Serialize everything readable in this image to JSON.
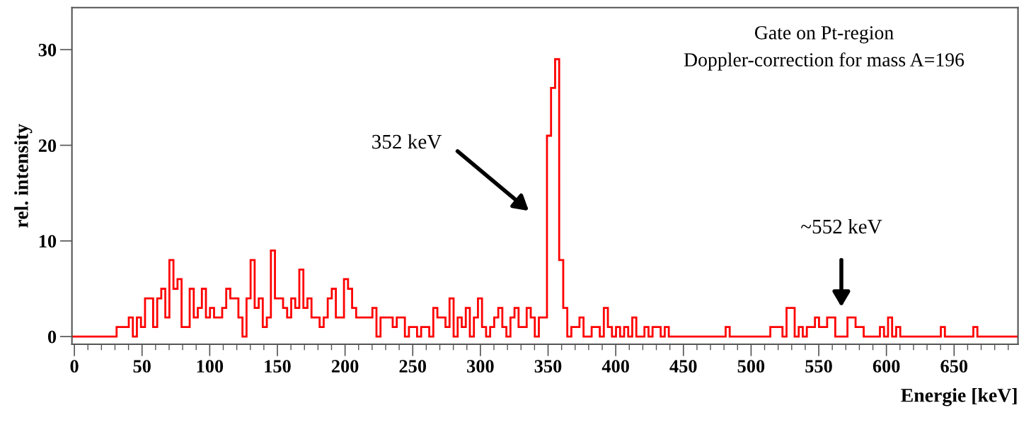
{
  "chart_data": {
    "type": "histogram",
    "xlabel": "Energie [keV]",
    "ylabel": "rel. intensity",
    "annotations": [
      "Gate on Pt-region",
      "Doppler-correction for mass A=196",
      "352 keV",
      "~552 keV"
    ],
    "color": "#ff0000",
    "bins": [
      -1.8,
      31.2,
      40.2,
      43.2,
      46.2,
      49.2,
      52.2,
      58.2,
      61.2,
      64.2,
      67.2,
      70.2,
      73.2,
      76.2,
      79.2,
      85.2,
      88.2,
      91.2,
      94.2,
      97.2,
      100.2,
      103.2,
      109.2,
      112.2,
      115.2,
      121.2,
      124.2,
      127.2,
      130.2,
      133.2,
      136.2,
      139.2,
      142.2,
      145.2,
      148.2,
      154.2,
      157.2,
      160.2,
      163.2,
      166.2,
      169.2,
      172.2,
      175.2,
      181.2,
      184.2,
      187.2,
      190.2,
      193.2,
      199.2,
      202.2,
      205.2,
      208.2,
      220.2,
      223.2,
      226.2,
      235.2,
      238.2,
      244.2,
      247.2,
      253.2,
      256.2,
      262.2,
      265.2,
      268.2,
      274.2,
      277.2,
      280.2,
      283.2,
      286.2,
      289.2,
      292.2,
      295.2,
      298.2,
      301.2,
      304.2,
      307.2,
      310.2,
      313.2,
      316.2,
      319.2,
      322.2,
      325.2,
      328.2,
      334.2,
      337.2,
      340.2,
      343.2,
      349.2,
      352.2,
      355.2,
      358.2,
      361.2,
      364.2,
      367.2,
      373.2,
      376.2,
      382.2,
      388.2,
      391.2,
      394.2,
      397.2,
      400.2,
      403.2,
      406.2,
      409.2,
      412.2,
      415.2,
      421.2,
      424.2,
      427.2,
      433.2,
      436.2,
      439.2,
      481.2,
      484.2,
      514.2,
      523.2,
      526.2,
      532.2,
      535.2,
      538.2,
      541.2,
      547.2,
      550.2,
      556.2,
      562.2,
      571.2,
      577.2,
      583.2,
      595.2,
      598.2,
      601.2,
      604.2,
      607.2,
      610.2,
      640.2,
      643.2,
      664.2,
      667.2,
      697.2
    ],
    "values": [
      0,
      1,
      2,
      0,
      2,
      1,
      4,
      1,
      4,
      5,
      2,
      8,
      5,
      6,
      1,
      5,
      2,
      3,
      5,
      2,
      3,
      2,
      3,
      5,
      4,
      2,
      0,
      4,
      8,
      3,
      4,
      1,
      2,
      9,
      4,
      3,
      2,
      4,
      3,
      7,
      3,
      4,
      2,
      1,
      2,
      4,
      5,
      2,
      6,
      5,
      3,
      2,
      3,
      0,
      2,
      1,
      2,
      0,
      1,
      0,
      1,
      0,
      3,
      2,
      1,
      4,
      0,
      2,
      1,
      3,
      0,
      2,
      4,
      1,
      0,
      1,
      2,
      3,
      1,
      0,
      2,
      3,
      1,
      3,
      2,
      0,
      2,
      21,
      26,
      29,
      8,
      3,
      0,
      1,
      2,
      0,
      1,
      0,
      3,
      1,
      0,
      1,
      0,
      1,
      0,
      2,
      0,
      1,
      0,
      1,
      0,
      1,
      0,
      1,
      0,
      1,
      0,
      3,
      0,
      1,
      0,
      1,
      2,
      1,
      2,
      0,
      2,
      1,
      0,
      1,
      0,
      2,
      0,
      1,
      0,
      1,
      0,
      1,
      0
    ],
    "xlim": [
      -1.8,
      697.2
    ],
    "ylim": [
      -0.8,
      34.4
    ],
    "xticks": [
      0,
      50,
      100,
      150,
      200,
      250,
      300,
      350,
      400,
      450,
      500,
      550,
      600,
      650
    ],
    "yticks": [
      0,
      10,
      20,
      30
    ]
  }
}
